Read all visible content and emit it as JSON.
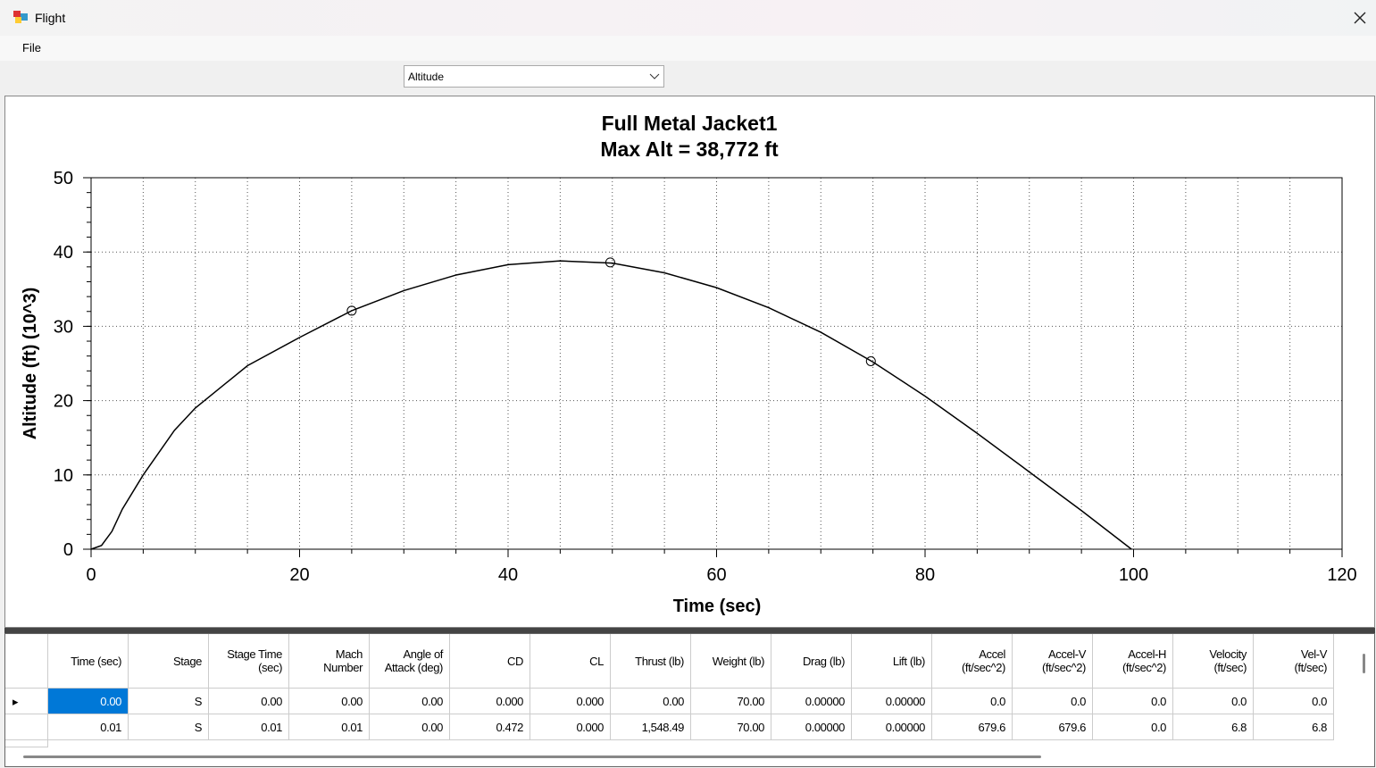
{
  "window": {
    "title": "Flight",
    "menu": [
      "File"
    ],
    "selector": "Altitude"
  },
  "chart_data": {
    "type": "line",
    "title": "Full Metal Jacket1",
    "subtitle": "Max Alt = 38,772 ft",
    "x_label": "Time (sec)",
    "y_label": "Altitude (ft) (10^3)",
    "xlim": [
      0,
      120
    ],
    "ylim": [
      0,
      50
    ],
    "xticks": [
      0,
      20,
      40,
      60,
      80,
      100,
      120
    ],
    "yticks": [
      0,
      10,
      20,
      30,
      40,
      50
    ],
    "grid": true,
    "minor_ticks": {
      "x": 5,
      "y": 2
    },
    "series": [
      {
        "color": "#000000",
        "x": [
          0,
          1,
          2,
          3,
          5,
          8,
          10,
          15,
          20,
          25,
          30,
          35,
          40,
          45,
          50,
          55,
          60,
          65,
          70,
          75,
          80,
          85,
          90,
          95,
          99.8
        ],
        "values": [
          0,
          0.5,
          2.4,
          5.4,
          10,
          16,
          19,
          24.7,
          28.5,
          32.1,
          34.8,
          36.9,
          38.3,
          38.8,
          38.5,
          37.2,
          35.2,
          32.5,
          29.2,
          25.2,
          20.6,
          15.6,
          10.4,
          5.2,
          0
        ]
      },
      {
        "type": "scatter",
        "color": "#000000",
        "x": [
          25,
          49.8,
          74.8
        ],
        "values": [
          32.1,
          38.6,
          25.3
        ]
      }
    ]
  },
  "table": {
    "columns": [
      "Time (sec)",
      "Stage",
      "Stage Time\n(sec)",
      "Mach\nNumber",
      "Angle of\nAttack (deg)",
      "CD",
      "CL",
      "Thrust (lb)",
      "Weight (lb)",
      "Drag (lb)",
      "Lift (lb)",
      "Accel\n(ft/sec^2)",
      "Accel-V\n(ft/sec^2)",
      "Accel-H\n(ft/sec^2)",
      "Velocity\n(ft/sec)",
      "Vel-V\n(ft/sec)"
    ],
    "rows": [
      [
        "0.00",
        "S",
        "0.00",
        "0.00",
        "0.00",
        "0.000",
        "0.000",
        "0.00",
        "70.00",
        "0.00000",
        "0.00000",
        "0.0",
        "0.0",
        "0.0",
        "0.0",
        "0.0"
      ],
      [
        "0.01",
        "S",
        "0.01",
        "0.01",
        "0.00",
        "0.472",
        "0.000",
        "1,548.49",
        "70.00",
        "0.00000",
        "0.00000",
        "679.6",
        "679.6",
        "0.0",
        "6.8",
        "6.8"
      ]
    ]
  }
}
